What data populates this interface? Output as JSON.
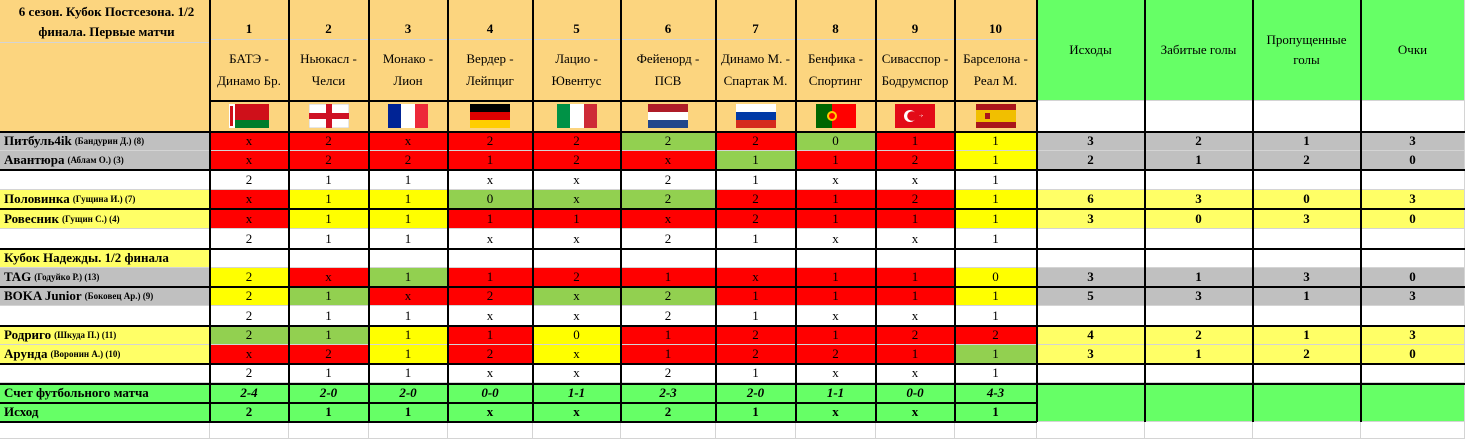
{
  "title": "6 сезон. Кубок Постсезона. 1/2 финала. Первые матчи",
  "matches": [
    {
      "num": "1",
      "home": "БАТЭ -",
      "away": "Динамо Бр.",
      "flag": "belarus-flag",
      "score": "2-4",
      "outcome": "2"
    },
    {
      "num": "2",
      "home": "Ньюкасл -",
      "away": "Челси",
      "flag": "england-flag",
      "score": "2-0",
      "outcome": "1"
    },
    {
      "num": "3",
      "home": "Монако -",
      "away": "Лион",
      "flag": "france-flag",
      "score": "2-0",
      "outcome": "1"
    },
    {
      "num": "4",
      "home": "Вердер -",
      "away": "Лейпциг",
      "flag": "germany-flag",
      "score": "0-0",
      "outcome": "х"
    },
    {
      "num": "5",
      "home": "Лацио -",
      "away": "Ювентус",
      "flag": "italy-flag",
      "score": "1-1",
      "outcome": "х"
    },
    {
      "num": "6",
      "home": "Фейенорд -",
      "away": "ПСВ",
      "flag": "netherlands-flag",
      "score": "2-3",
      "outcome": "2"
    },
    {
      "num": "7",
      "home": "Динамо М. -",
      "away": "Спартак М.",
      "flag": "russia-flag",
      "score": "2-0",
      "outcome": "1"
    },
    {
      "num": "8",
      "home": "Бенфика -",
      "away": "Спортинг",
      "flag": "portugal-flag",
      "score": "1-1",
      "outcome": "х"
    },
    {
      "num": "9",
      "home": "Сивасспор -",
      "away": "Бодрумспор",
      "flag": "turkey-flag",
      "score": "0-0",
      "outcome": "х"
    },
    {
      "num": "10",
      "home": "Барселона -",
      "away": "Реал М.",
      "flag": "spain-flag",
      "score": "4-3",
      "outcome": "1"
    }
  ],
  "stat_headers": [
    "Исходы",
    "Забитые голы",
    "Пропущенные голы",
    "Очки"
  ],
  "section2_title": "Кубок Надежды. 1/2 финала",
  "rows": [
    {
      "type": "player",
      "name": "Питбуль4ik",
      "manager": "(Бандурин Д.) (8)",
      "shade": "gr",
      "cells": [
        [
          "х",
          "r"
        ],
        [
          "2",
          "r"
        ],
        [
          "х",
          "r"
        ],
        [
          "2",
          "r"
        ],
        [
          "2",
          "r"
        ],
        [
          "2",
          "g"
        ],
        [
          "2",
          "r"
        ],
        [
          "0",
          "g"
        ],
        [
          "1",
          "r"
        ],
        [
          "1",
          "y"
        ]
      ],
      "stats": [
        "3",
        "2",
        "1",
        "3"
      ]
    },
    {
      "type": "player",
      "name": "Авантюра",
      "manager": "(Аблам О.) (3)",
      "shade": "gr",
      "cells": [
        [
          "х",
          "r"
        ],
        [
          "2",
          "r"
        ],
        [
          "2",
          "r"
        ],
        [
          "1",
          "r"
        ],
        [
          "2",
          "r"
        ],
        [
          "х",
          "r"
        ],
        [
          "1",
          "g"
        ],
        [
          "1",
          "r"
        ],
        [
          "2",
          "r"
        ],
        [
          "1",
          "y"
        ]
      ],
      "stats": [
        "2",
        "1",
        "2",
        "0"
      ]
    },
    {
      "type": "summary",
      "cells": [
        "2",
        "1",
        "1",
        "х",
        "х",
        "2",
        "1",
        "х",
        "х",
        "1"
      ]
    },
    {
      "type": "player",
      "name": "Половинка",
      "manager": "(Гущина И.) (7)",
      "shade": "yl",
      "cells": [
        [
          "х",
          "r"
        ],
        [
          "1",
          "y"
        ],
        [
          "1",
          "y"
        ],
        [
          "0",
          "g"
        ],
        [
          "х",
          "g"
        ],
        [
          "2",
          "g"
        ],
        [
          "2",
          "r"
        ],
        [
          "1",
          "r"
        ],
        [
          "2",
          "r"
        ],
        [
          "1",
          "y"
        ]
      ],
      "stats": [
        "6",
        "3",
        "0",
        "3"
      ]
    },
    {
      "type": "player",
      "name": "Ровесник",
      "manager": "(Гущин С.) (4)",
      "shade": "yl",
      "cells": [
        [
          "х",
          "r"
        ],
        [
          "1",
          "y"
        ],
        [
          "1",
          "y"
        ],
        [
          "1",
          "r"
        ],
        [
          "1",
          "r"
        ],
        [
          "х",
          "r"
        ],
        [
          "2",
          "r"
        ],
        [
          "1",
          "r"
        ],
        [
          "1",
          "r"
        ],
        [
          "1",
          "y"
        ]
      ],
      "stats": [
        "3",
        "0",
        "3",
        "0"
      ]
    },
    {
      "type": "summary",
      "cells": [
        "2",
        "1",
        "1",
        "х",
        "х",
        "2",
        "1",
        "х",
        "х",
        "1"
      ]
    },
    {
      "type": "section"
    },
    {
      "type": "player",
      "name": "TAG",
      "manager": "(Годуйко Р.) (13)",
      "shade": "gr",
      "cells": [
        [
          "2",
          "y"
        ],
        [
          "х",
          "r"
        ],
        [
          "1",
          "g"
        ],
        [
          "1",
          "r"
        ],
        [
          "2",
          "r"
        ],
        [
          "1",
          "r"
        ],
        [
          "х",
          "r"
        ],
        [
          "1",
          "r"
        ],
        [
          "1",
          "r"
        ],
        [
          "0",
          "y"
        ]
      ],
      "stats": [
        "3",
        "1",
        "3",
        "0"
      ]
    },
    {
      "type": "player",
      "name": "BOKA Junior",
      "manager": "(Боковец Ар.) (9)",
      "shade": "gr",
      "cells": [
        [
          "2",
          "y"
        ],
        [
          "1",
          "g"
        ],
        [
          "х",
          "r"
        ],
        [
          "2",
          "r"
        ],
        [
          "х",
          "g"
        ],
        [
          "2",
          "g"
        ],
        [
          "1",
          "r"
        ],
        [
          "1",
          "r"
        ],
        [
          "1",
          "r"
        ],
        [
          "1",
          "y"
        ]
      ],
      "stats": [
        "5",
        "3",
        "1",
        "3"
      ]
    },
    {
      "type": "summary",
      "cells": [
        "2",
        "1",
        "1",
        "х",
        "х",
        "2",
        "1",
        "х",
        "х",
        "1"
      ]
    },
    {
      "type": "player",
      "name": "Родриго",
      "manager": "(Шкуда П.) (11)",
      "shade": "yl",
      "cells": [
        [
          "2",
          "g"
        ],
        [
          "1",
          "g"
        ],
        [
          "1",
          "y"
        ],
        [
          "1",
          "r"
        ],
        [
          "0",
          "y"
        ],
        [
          "1",
          "r"
        ],
        [
          "2",
          "r"
        ],
        [
          "1",
          "r"
        ],
        [
          "2",
          "r"
        ],
        [
          "2",
          "r"
        ]
      ],
      "stats": [
        "4",
        "2",
        "1",
        "3"
      ]
    },
    {
      "type": "player",
      "name": "Арунда",
      "manager": "(Воронин А.) (10)",
      "shade": "yl",
      "cells": [
        [
          "х",
          "r"
        ],
        [
          "2",
          "r"
        ],
        [
          "1",
          "y"
        ],
        [
          "2",
          "r"
        ],
        [
          "х",
          "y"
        ],
        [
          "1",
          "r"
        ],
        [
          "2",
          "r"
        ],
        [
          "2",
          "r"
        ],
        [
          "1",
          "r"
        ],
        [
          "1",
          "g"
        ]
      ],
      "stats": [
        "3",
        "1",
        "2",
        "0"
      ]
    },
    {
      "type": "summary",
      "cells": [
        "2",
        "1",
        "1",
        "х",
        "х",
        "2",
        "1",
        "х",
        "х",
        "1"
      ]
    }
  ],
  "score_label": "Счет футбольного матча",
  "outcome_label": "Исход"
}
